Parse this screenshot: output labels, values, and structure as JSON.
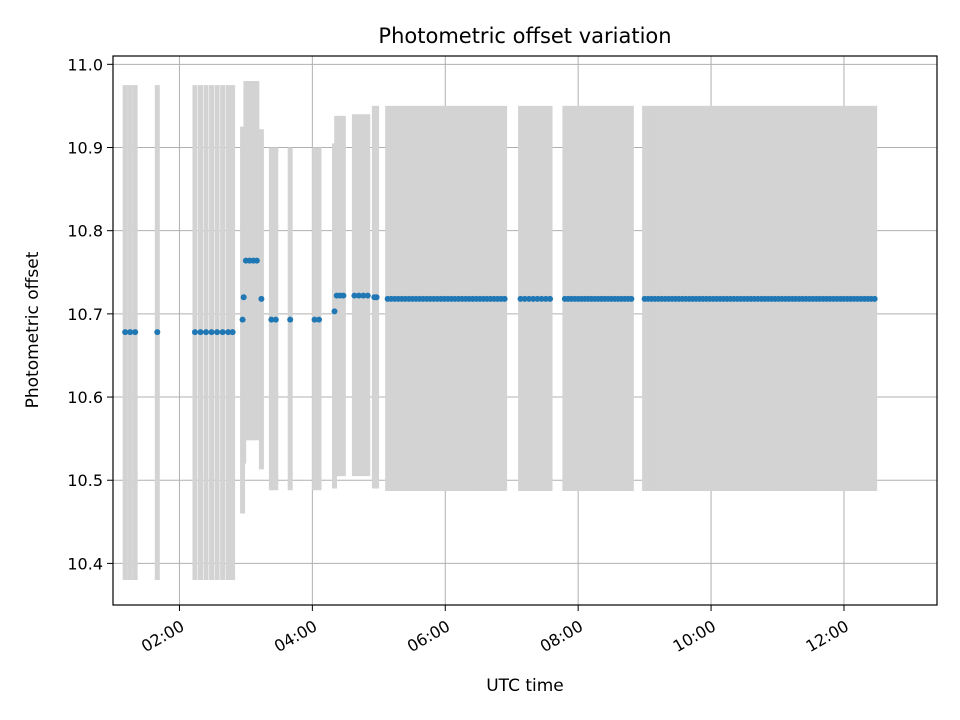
{
  "chart_data": {
    "type": "scatter",
    "title": "Photometric offset variation",
    "xlabel": "UTC time",
    "ylabel": "Photometric offset",
    "xlim": [
      "01:00",
      "13:24"
    ],
    "ylim": [
      10.35,
      11.01
    ],
    "grid": true,
    "y_ticks": [
      10.4,
      10.5,
      10.6,
      10.7,
      10.8,
      10.9,
      11.0
    ],
    "y_tick_labels": [
      "10.4",
      "10.5",
      "10.6",
      "10.7",
      "10.8",
      "10.9",
      "11.0"
    ],
    "x_ticks": [
      "02:00",
      "04:00",
      "06:00",
      "08:00",
      "10:00",
      "12:00"
    ],
    "x_tick_labels": [
      "02:00",
      "04:00",
      "06:00",
      "08:00",
      "10:00",
      "12:00"
    ],
    "colors": {
      "points": "#1f77b4",
      "errorbars": "#d3d3d3",
      "grid": "#b0b0b0"
    },
    "segments": [
      {
        "start": "01:11",
        "end": "01:21",
        "step_min": 4.5,
        "y": 10.678,
        "err_low": 10.38,
        "err_high": 10.975
      },
      {
        "start": "01:40",
        "end": "01:40",
        "step_min": 5,
        "y": 10.678,
        "err_low": 10.38,
        "err_high": 10.975
      },
      {
        "start": "02:14",
        "end": "02:42",
        "step_min": 5,
        "y": 10.678,
        "err_low": 10.38,
        "err_high": 10.975
      },
      {
        "start": "02:44",
        "end": "02:48",
        "step_min": 4,
        "y": 10.678,
        "err_low": 10.38,
        "err_high": 10.975
      },
      {
        "start": "02:57",
        "end": "02:57",
        "step_min": 5,
        "y": 10.693,
        "err_low": 10.46,
        "err_high": 10.925
      },
      {
        "start": "02:58",
        "end": "02:58",
        "step_min": 5,
        "y": 10.72,
        "err_low": 10.52,
        "err_high": 10.925
      },
      {
        "start": "03:00",
        "end": "03:10",
        "step_min": 3.3,
        "y": 10.764,
        "err_low": 10.548,
        "err_high": 10.98
      },
      {
        "start": "03:14",
        "end": "03:14",
        "step_min": 5,
        "y": 10.718,
        "err_low": 10.513,
        "err_high": 10.922
      },
      {
        "start": "03:23",
        "end": "03:27",
        "step_min": 4,
        "y": 10.693,
        "err_low": 10.488,
        "err_high": 10.9
      },
      {
        "start": "03:40",
        "end": "03:40",
        "step_min": 5,
        "y": 10.693,
        "err_low": 10.488,
        "err_high": 10.9
      },
      {
        "start": "04:02",
        "end": "04:06",
        "step_min": 4,
        "y": 10.693,
        "err_low": 10.488,
        "err_high": 10.9
      },
      {
        "start": "04:20",
        "end": "04:20",
        "step_min": 5,
        "y": 10.703,
        "err_low": 10.49,
        "err_high": 10.905
      },
      {
        "start": "04:22",
        "end": "04:28",
        "step_min": 3,
        "y": 10.722,
        "err_low": 10.505,
        "err_high": 10.938
      },
      {
        "start": "04:38",
        "end": "04:50",
        "step_min": 4,
        "y": 10.722,
        "err_low": 10.505,
        "err_high": 10.94
      },
      {
        "start": "04:56",
        "end": "04:58",
        "step_min": 2,
        "y": 10.72,
        "err_low": 10.49,
        "err_high": 10.95
      },
      {
        "start": "05:08",
        "end": "06:55",
        "step_min": 3.2,
        "y": 10.718,
        "err_low": 10.487,
        "err_high": 10.95
      },
      {
        "start": "07:08",
        "end": "07:38",
        "step_min": 3.8,
        "y": 10.718,
        "err_low": 10.487,
        "err_high": 10.95
      },
      {
        "start": "07:48",
        "end": "08:48",
        "step_min": 3,
        "y": 10.718,
        "err_low": 10.487,
        "err_high": 10.95
      },
      {
        "start": "09:00",
        "end": "12:28",
        "step_min": 3.1,
        "y": 10.718,
        "err_low": 10.487,
        "err_high": 10.95
      }
    ]
  }
}
